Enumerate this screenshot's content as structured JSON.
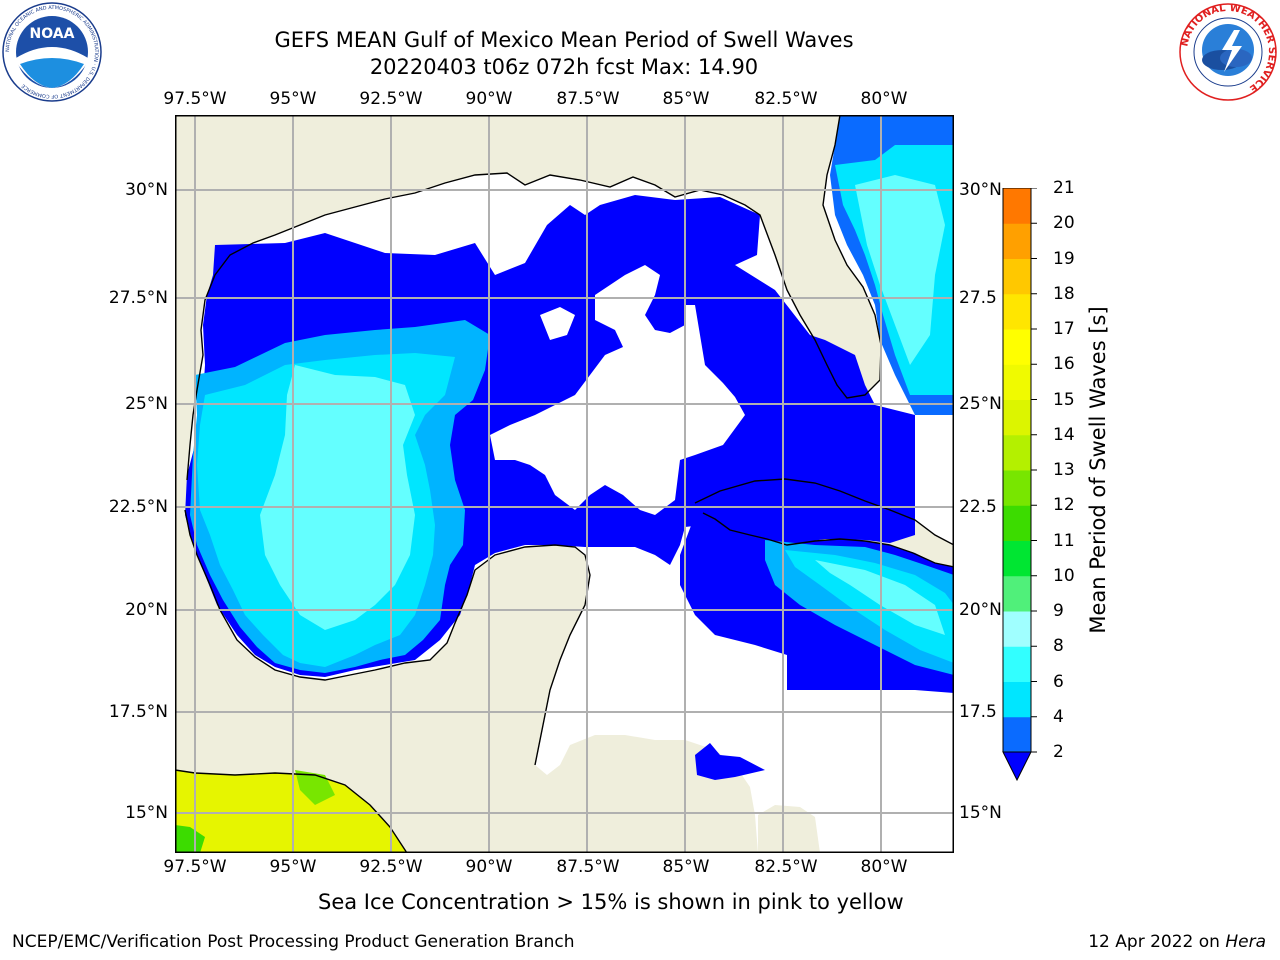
{
  "title": {
    "line1": "GEFS MEAN Gulf of Mexico Mean Period of Swell Waves",
    "line2": "20220403 t06z 072h fcst   Max: 14.90"
  },
  "logos": {
    "left": {
      "name": "noaa-logo",
      "text": "NOAA",
      "ring_text": "NATIONAL OCEANIC AND ATMOSPHERIC ADMINISTRATION · U.S. DEPARTMENT OF COMMERCE"
    },
    "right": {
      "name": "nws-logo",
      "ring_text": "NATIONAL WEATHER SERVICE"
    }
  },
  "map": {
    "lon_ticks": [
      "97.5°W",
      "95°W",
      "92.5°W",
      "90°W",
      "87.5°W",
      "85°W",
      "82.5°W",
      "80°W"
    ],
    "lat_ticks_left": [
      "30°N",
      "27.5°N",
      "25°N",
      "22.5°N",
      "20°N",
      "17.5°N",
      "15°N"
    ],
    "lat_ticks_right": [
      "30°N",
      "27.5",
      "25°N",
      "22.5",
      "20°N",
      "17.5",
      "15°N"
    ],
    "colors": {
      "land": "#efeedc",
      "no_data_water": "#ffffff",
      "grid": "#b0b0b0",
      "coast": "#000000"
    }
  },
  "colorbar": {
    "label": "Mean Period of Swell Waves [s]",
    "levels": [
      "2",
      "3",
      "4",
      "5",
      "6",
      "7",
      "8",
      "9",
      "10",
      "11",
      "12",
      "13",
      "14",
      "15",
      "16",
      "17",
      "18",
      "19",
      "20",
      "21"
    ],
    "tick_labels": [
      "2",
      "4",
      "6",
      "8",
      "9",
      "10",
      "11",
      "12",
      "13",
      "14",
      "15",
      "16",
      "17",
      "18",
      "19",
      "20",
      "21"
    ],
    "colors": [
      "#0a6bff",
      "#00b4ff",
      "#00e6ff",
      "#32ffff",
      "#64ffff",
      "#a0ffff",
      "#50f07a",
      "#00e632",
      "#3cdc00",
      "#78e600",
      "#b4f000",
      "#dcf500",
      "#f0fa00",
      "#ffff00",
      "#ffe600",
      "#ffc800",
      "#ffa000",
      "#ff7800",
      "#ff5000",
      "#ff2800"
    ],
    "extend_color": "#0000ff"
  },
  "caption": "Sea Ice Concentration > 15% is shown in pink to yellow",
  "footer": {
    "left": "NCEP/EMC/Verification Post Processing Product Generation Branch",
    "right_date": "12 Apr 2022 on ",
    "right_host": "Hera"
  }
}
